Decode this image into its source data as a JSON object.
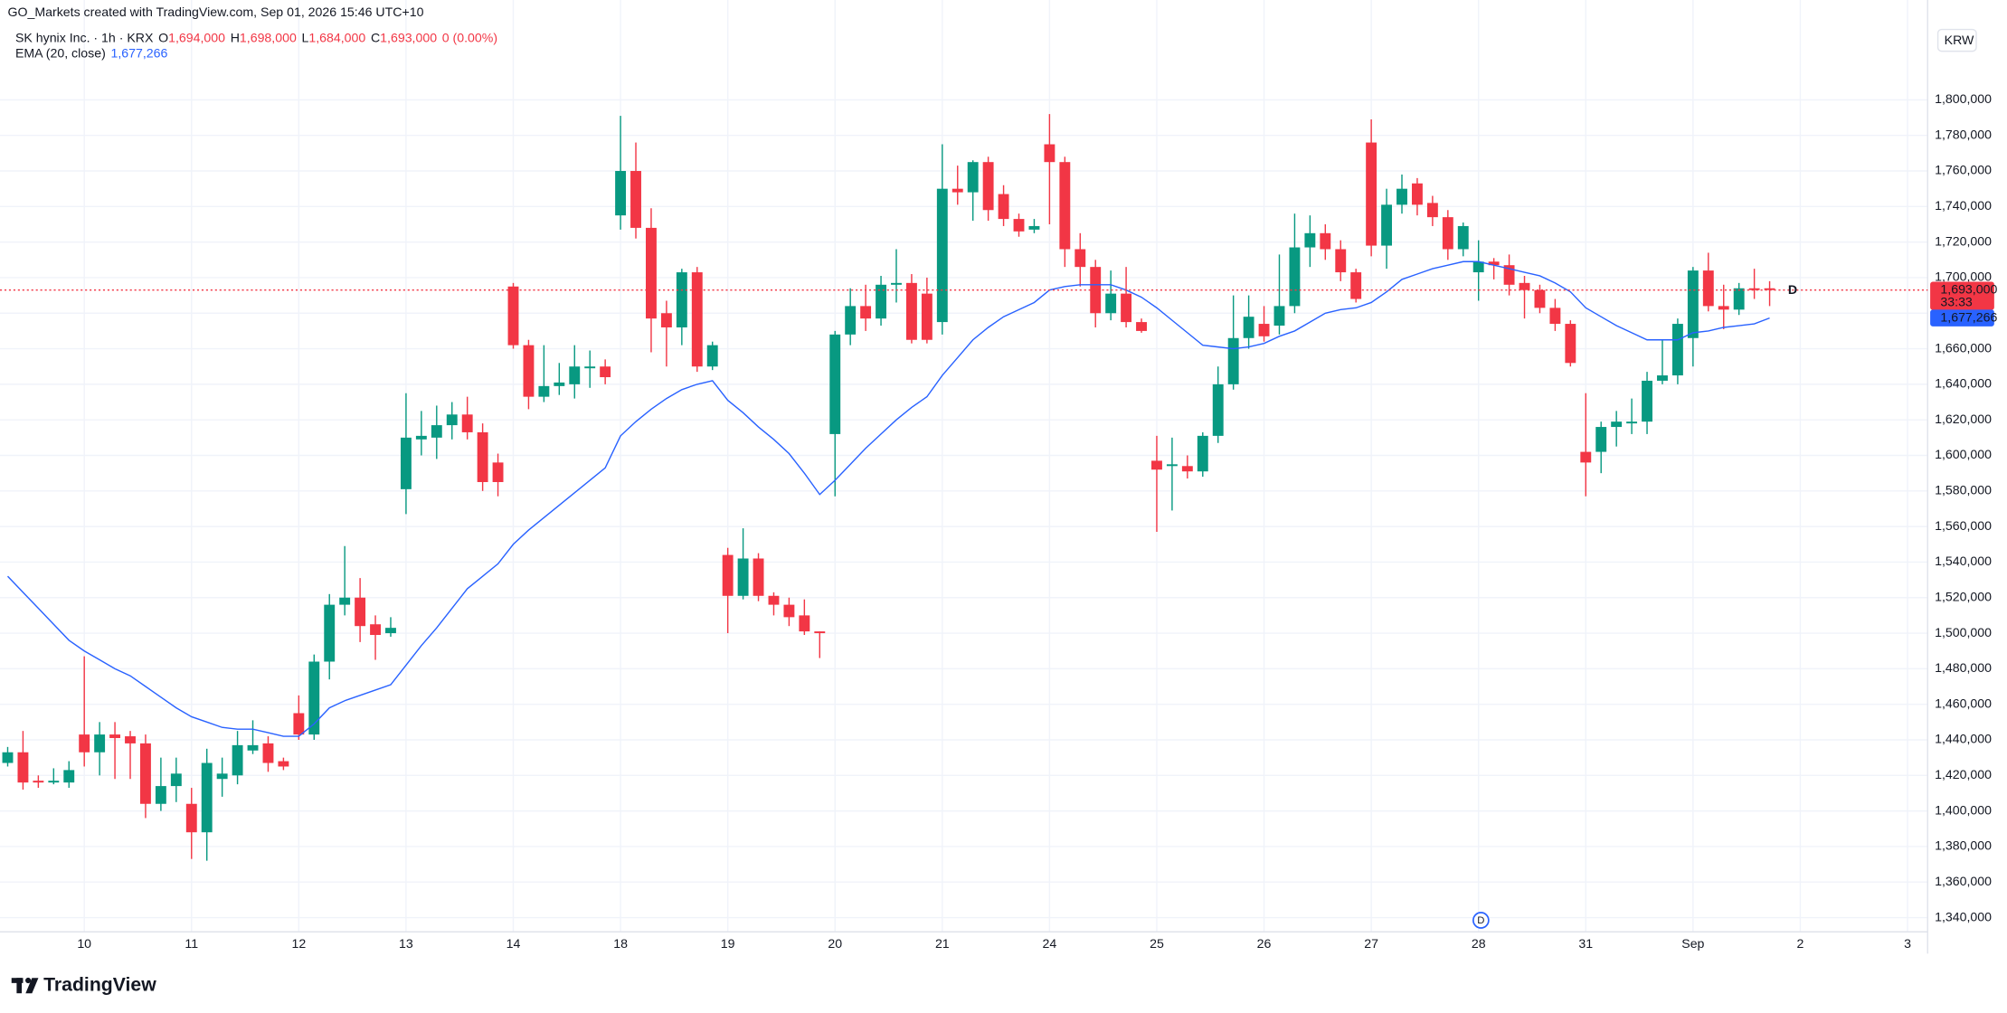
{
  "chart_data": {
    "type": "candlestick",
    "title": "GO_Markets created with TradingView.com, Sep 01, 2026 15:46 UTC+10",
    "symbol": "SK hynix Inc. · 1h · KRX",
    "ohlc_legend": [
      {
        "label": "O",
        "value": "1,694,000"
      },
      {
        "label": "H",
        "value": "1,698,000"
      },
      {
        "label": "L",
        "value": "1,684,000"
      },
      {
        "label": "C",
        "value": "1,693,000"
      }
    ],
    "change": "0 (0.00%)",
    "currency": "KRW",
    "logo": "TradingView",
    "categories": [
      null,
      null,
      null,
      null,
      null,
      "10",
      null,
      null,
      null,
      null,
      null,
      null,
      "11",
      null,
      null,
      null,
      null,
      null,
      null,
      "12",
      null,
      null,
      null,
      null,
      null,
      null,
      "13",
      null,
      null,
      null,
      null,
      null,
      null,
      "14",
      null,
      null,
      null,
      null,
      null,
      null,
      "18",
      null,
      null,
      null,
      null,
      null,
      null,
      "19",
      null,
      null,
      null,
      null,
      null,
      null,
      "20",
      null,
      null,
      null,
      null,
      null,
      null,
      "21",
      null,
      null,
      null,
      null,
      null,
      null,
      "24",
      null,
      null,
      null,
      null,
      null,
      null,
      "25",
      null,
      null,
      null,
      null,
      null,
      null,
      "26",
      null,
      null,
      null,
      null,
      null,
      null,
      "27",
      null,
      null,
      null,
      null,
      null,
      null,
      "28",
      null,
      null,
      null,
      null,
      null,
      null,
      "31",
      null,
      null,
      null,
      null,
      null,
      null,
      "Sep",
      null,
      null,
      null,
      null,
      null,
      null,
      "2",
      null,
      null,
      null,
      null,
      null,
      null,
      "3"
    ],
    "open": [
      1427000,
      1433000,
      1417000,
      1416000,
      1416000,
      1443000,
      1433000,
      1443000,
      1442000,
      1438000,
      1404000,
      1414000,
      1404000,
      1388000,
      1418000,
      1420000,
      1434000,
      1438000,
      1428000,
      1455000,
      1443000,
      1484000,
      1516000,
      1520000,
      1505000,
      1500000,
      1581000,
      1609000,
      1610000,
      1617000,
      1623000,
      1613000,
      1596000,
      1695000,
      1662000,
      1633000,
      1639000,
      1640000,
      1649000,
      1650000,
      1735000,
      1760000,
      1728000,
      1680000,
      1672000,
      1703000,
      1650000,
      1544000,
      1521000,
      1542000,
      1521000,
      1516000,
      1510000,
      1501000,
      1612000,
      1668000,
      1684000,
      1677000,
      1696000,
      1697000,
      1691000,
      1675000,
      1750000,
      1748000,
      1765000,
      1747000,
      1733000,
      1727000,
      1775000,
      1765000,
      1716000,
      1706000,
      1680000,
      1691000,
      1675000,
      1597000,
      1594000,
      1594000,
      1591000,
      1611000,
      1640000,
      1666000,
      1674000,
      1673000,
      1684000,
      1717000,
      1725000,
      1716000,
      1703000,
      1776000,
      1718000,
      1741000,
      1753000,
      1742000,
      1734000,
      1716000,
      1703000,
      1709000,
      1707000,
      1697000,
      1693000,
      1683000,
      1674000,
      1602000,
      1602000,
      1616000,
      1618000,
      1619000,
      1642000,
      1645000,
      1666000,
      1704000,
      1684000,
      1682000,
      1694000,
      1694000,
      null,
      null,
      null,
      null,
      null,
      null,
      null,
      null,
      null
    ],
    "high": [
      1436000,
      1445000,
      1420000,
      1424000,
      1428000,
      1487000,
      1450000,
      1450000,
      1445000,
      1443000,
      1430000,
      1430000,
      1413000,
      1435000,
      1430000,
      1445000,
      1451000,
      1442000,
      1430000,
      1465000,
      1488000,
      1522000,
      1549000,
      1531000,
      1510000,
      1509000,
      1635000,
      1625000,
      1628000,
      1630000,
      1633000,
      1618000,
      1601000,
      1697000,
      1665000,
      1662000,
      1652000,
      1662000,
      1659000,
      1654000,
      1791000,
      1776000,
      1739000,
      1687000,
      1705000,
      1706000,
      1664000,
      1548000,
      1559000,
      1545000,
      1523000,
      1520000,
      1519000,
      1501000,
      1670000,
      1694000,
      1696000,
      1701000,
      1716000,
      1702000,
      1700000,
      1775000,
      1763000,
      1766000,
      1768000,
      1752000,
      1736000,
      1733000,
      1792000,
      1768000,
      1725000,
      1710000,
      1704000,
      1706000,
      1677000,
      1611000,
      1610000,
      1600000,
      1613000,
      1650000,
      1690000,
      1690000,
      1684000,
      1713000,
      1736000,
      1735000,
      1730000,
      1721000,
      1705000,
      1789000,
      1750000,
      1758000,
      1756000,
      1746000,
      1738000,
      1731000,
      1721000,
      1711000,
      1713000,
      1701000,
      1696000,
      1688000,
      1676000,
      1635000,
      1619000,
      1625000,
      1632000,
      1647000,
      1665000,
      1677000,
      1706000,
      1714000,
      1696000,
      1697000,
      1705000,
      1698000,
      null,
      null,
      null,
      null,
      null,
      null,
      null,
      null,
      null
    ],
    "low": [
      1425000,
      1412000,
      1413000,
      1415000,
      1413000,
      1425000,
      1420000,
      1418000,
      1418000,
      1396000,
      1400000,
      1405000,
      1373000,
      1372000,
      1408000,
      1415000,
      1432000,
      1422000,
      1423000,
      1440000,
      1440000,
      1474000,
      1510000,
      1495000,
      1485000,
      1498000,
      1567000,
      1600000,
      1598000,
      1609000,
      1609000,
      1580000,
      1577000,
      1660000,
      1626000,
      1630000,
      1634000,
      1632000,
      1638000,
      1640000,
      1727000,
      1722000,
      1658000,
      1650000,
      1662000,
      1647000,
      1648000,
      1500000,
      1519000,
      1518000,
      1510000,
      1504000,
      1499000,
      1486000,
      1577000,
      1662000,
      1670000,
      1673000,
      1686000,
      1663000,
      1663000,
      1668000,
      1741000,
      1732000,
      1732000,
      1729000,
      1723000,
      1725000,
      1730000,
      1706000,
      1695000,
      1672000,
      1676000,
      1672000,
      1669000,
      1557000,
      1569000,
      1587000,
      1588000,
      1607000,
      1637000,
      1660000,
      1664000,
      1668000,
      1680000,
      1706000,
      1710000,
      1698000,
      1686000,
      1712000,
      1705000,
      1736000,
      1735000,
      1729000,
      1710000,
      1712000,
      1687000,
      1699000,
      1690000,
      1677000,
      1680000,
      1670000,
      1650000,
      1577000,
      1590000,
      1605000,
      1612000,
      1612000,
      1640000,
      1640000,
      1650000,
      1681000,
      1671000,
      1679000,
      1688000,
      1684000,
      null,
      null,
      null,
      null,
      null,
      null,
      null,
      null,
      null
    ],
    "close": [
      1433000,
      1416000,
      1416000,
      1417000,
      1423000,
      1433000,
      1443000,
      1441000,
      1438000,
      1404000,
      1414000,
      1421000,
      1388000,
      1427000,
      1421000,
      1437000,
      1437000,
      1427000,
      1425000,
      1443000,
      1484000,
      1516000,
      1520000,
      1504000,
      1499000,
      1503000,
      1610000,
      1611000,
      1617000,
      1623000,
      1613000,
      1585000,
      1585000,
      1662000,
      1633000,
      1639000,
      1641000,
      1650000,
      1650000,
      1644000,
      1760000,
      1728000,
      1677000,
      1672000,
      1703000,
      1650000,
      1662000,
      1521000,
      1542000,
      1521000,
      1516000,
      1509000,
      1501000,
      1500000,
      1668000,
      1684000,
      1677000,
      1696000,
      1697000,
      1665000,
      1665000,
      1750000,
      1748000,
      1765000,
      1738000,
      1733000,
      1726000,
      1729000,
      1765000,
      1716000,
      1706000,
      1680000,
      1691000,
      1675000,
      1670000,
      1592000,
      1595000,
      1591000,
      1611000,
      1640000,
      1666000,
      1678000,
      1667000,
      1684000,
      1717000,
      1725000,
      1716000,
      1703000,
      1688000,
      1718000,
      1741000,
      1750000,
      1741000,
      1734000,
      1716000,
      1729000,
      1709000,
      1707000,
      1696000,
      1693000,
      1683000,
      1674000,
      1652000,
      1596000,
      1616000,
      1619000,
      1619000,
      1642000,
      1645000,
      1674000,
      1704000,
      1684000,
      1682000,
      1694000,
      1693000,
      1693000,
      null,
      null,
      null,
      null,
      null,
      null,
      null,
      null,
      null
    ],
    "colors": {
      "up": "#089981",
      "down": "#f23645"
    },
    "overlay": {
      "name": "EMA (20, close)",
      "color": "#2962ff",
      "current_label": "1,677,266",
      "values": [
        1532000,
        1523000,
        1514000,
        1505000,
        1496000,
        1490000,
        1485000,
        1480000,
        1476000,
        1470000,
        1464000,
        1458000,
        1453000,
        1450000,
        1447000,
        1446000,
        1446000,
        1444000,
        1442000,
        1442000,
        1449000,
        1458000,
        1462000,
        1465000,
        1468000,
        1471000,
        1482000,
        1493000,
        1503000,
        1514000,
        1525000,
        1532000,
        1539000,
        1550000,
        1558000,
        1565000,
        1572000,
        1579000,
        1586000,
        1593000,
        1611000,
        1619000,
        1626000,
        1632000,
        1637000,
        1640000,
        1642000,
        1631000,
        1624000,
        1616000,
        1609000,
        1601000,
        1590000,
        1578000,
        1586000,
        1595000,
        1604000,
        1612000,
        1620000,
        1627000,
        1633000,
        1645000,
        1655000,
        1665000,
        1672000,
        1678000,
        1682000,
        1686000,
        1693000,
        1695000,
        1696000,
        1696000,
        1696000,
        1693000,
        1689000,
        1683000,
        1676000,
        1669000,
        1662000,
        1661000,
        1660000,
        1661000,
        1663000,
        1667000,
        1670000,
        1675000,
        1680000,
        1682000,
        1683000,
        1686000,
        1692000,
        1699000,
        1702000,
        1705000,
        1707000,
        1709000,
        1709000,
        1707000,
        1705000,
        1703000,
        1701000,
        1697000,
        1692000,
        1683000,
        1678000,
        1673000,
        1669000,
        1665000,
        1665000,
        1665000,
        1669000,
        1670000,
        1672000,
        1673000,
        1674000,
        1677266,
        null,
        null,
        null,
        null,
        null,
        null,
        null,
        null,
        null
      ]
    },
    "last_price": {
      "label": "1,693,000",
      "countdown": "33:33"
    },
    "markers": [
      "D",
      "D"
    ],
    "ylim": [
      1332000,
      1843200
    ],
    "yticks": [
      {
        "value": 1340000,
        "label": "1,340,000"
      },
      {
        "value": 1360000,
        "label": "1,360,000"
      },
      {
        "value": 1380000,
        "label": "1,380,000"
      },
      {
        "value": 1400000,
        "label": "1,400,000"
      },
      {
        "value": 1420000,
        "label": "1,420,000"
      },
      {
        "value": 1440000,
        "label": "1,440,000"
      },
      {
        "value": 1460000,
        "label": "1,460,000"
      },
      {
        "value": 1480000,
        "label": "1,480,000"
      },
      {
        "value": 1500000,
        "label": "1,500,000"
      },
      {
        "value": 1520000,
        "label": "1,520,000"
      },
      {
        "value": 1540000,
        "label": "1,540,000"
      },
      {
        "value": 1560000,
        "label": "1,560,000"
      },
      {
        "value": 1580000,
        "label": "1,580,000"
      },
      {
        "value": 1600000,
        "label": "1,600,000"
      },
      {
        "value": 1620000,
        "label": "1,620,000"
      },
      {
        "value": 1640000,
        "label": "1,640,000"
      },
      {
        "value": 1660000,
        "label": "1,660,000"
      },
      {
        "value": 1680000,
        "label": "1,680,000"
      },
      {
        "value": 1700000,
        "label": "1,700,000"
      },
      {
        "value": 1720000,
        "label": "1,720,000"
      },
      {
        "value": 1740000,
        "label": "1,740,000"
      },
      {
        "value": 1760000,
        "label": "1,760,000"
      },
      {
        "value": 1780000,
        "label": "1,780,000"
      },
      {
        "value": 1800000,
        "label": "1,800,000"
      }
    ],
    "grid": true
  }
}
